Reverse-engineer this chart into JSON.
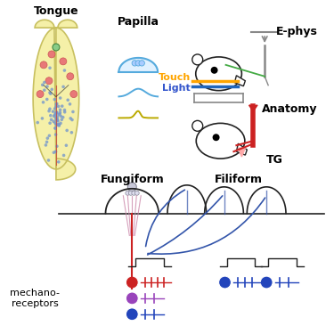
{
  "tongue_color": "#F5F0A8",
  "tongue_edge": "#C8C060",
  "tongue_label": "Tongue",
  "papilla_label": "Papilla",
  "fungiform_label": "Fungiform",
  "filiform_label": "Filiform",
  "mechano_label": "mechano-\nreceptors",
  "ephys_label": "E-phys",
  "anatomy_label": "Anatomy",
  "tg_label": "TG",
  "touch_label": "Touch",
  "light_label": "Light",
  "touch_color": "#FFA500",
  "light_color": "#3355CC",
  "papilla_blue": "#55AADD",
  "papilla_trace_gold": "#BBAA00",
  "outline": "#222222",
  "red_neuron": "#CC2222",
  "purple_neuron": "#9944BB",
  "blue_neuron": "#2244BB",
  "filiform_blue": "#3355AA",
  "tongue_dot_blue": "#7799CC",
  "tongue_fungiform_pink": "#E87878",
  "green_dot": "#448844",
  "bg": "#FFFFFF"
}
